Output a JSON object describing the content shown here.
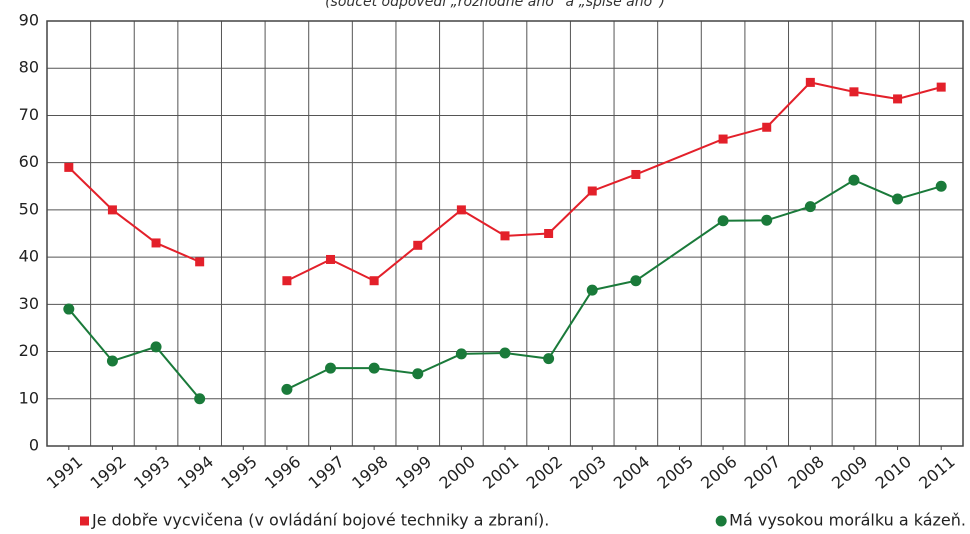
{
  "chart_data": {
    "type": "line",
    "subtitle": "(součet odpovědí „rozhodně ano“ a „spíše ano“)",
    "x": [
      1991,
      1992,
      1993,
      1994,
      1995,
      1996,
      1997,
      1998,
      1999,
      2000,
      2001,
      2002,
      2003,
      2004,
      2006,
      2007,
      2008,
      2009,
      2010,
      2011
    ],
    "xlim": [
      1990.5,
      2011.5
    ],
    "xticks": [
      1991,
      1992,
      1993,
      1994,
      1995,
      1996,
      1997,
      1998,
      1999,
      2000,
      2001,
      2002,
      2003,
      2004,
      2005,
      2006,
      2007,
      2008,
      2009,
      2010,
      2011
    ],
    "ylim": [
      0,
      90
    ],
    "yticks": [
      0,
      10,
      20,
      30,
      40,
      50,
      60,
      70,
      80,
      90
    ],
    "grid": true,
    "series": [
      {
        "name": "Je dobře vycvičena (v ovládání bojové techniky a zbraní).",
        "color": "#e3202a",
        "marker": "square",
        "values": [
          59,
          50,
          43,
          39,
          null,
          35,
          39.5,
          35,
          42.5,
          50,
          44.5,
          45,
          54,
          57.5,
          65,
          67.5,
          77,
          75,
          73.5,
          76
        ]
      },
      {
        "name": "Má vysokou morálku a kázeň.",
        "color": "#1a7a3a",
        "marker": "circle",
        "values": [
          29,
          18,
          21,
          10,
          null,
          12,
          16.5,
          16.5,
          15.3,
          19.5,
          19.7,
          18.5,
          33,
          35,
          47.7,
          47.8,
          50.7,
          56.3,
          52.3,
          55
        ]
      }
    ]
  }
}
